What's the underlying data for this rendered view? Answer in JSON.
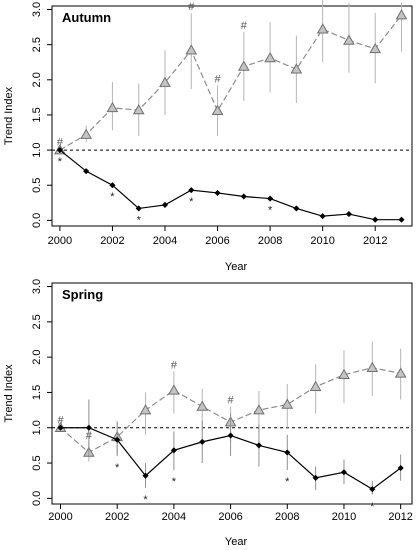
{
  "chart_data": [
    {
      "type": "line",
      "title": "Autumn",
      "xlabel": "Year",
      "ylabel": "Trend Index",
      "xlim": [
        1999.7,
        2013.4
      ],
      "ylim": [
        -0.08,
        3.05
      ],
      "xticks": [
        2000,
        2002,
        2004,
        2006,
        2008,
        2010,
        2012
      ],
      "yticks": [
        0.0,
        0.5,
        1.0,
        1.5,
        2.0,
        2.5,
        3.0
      ],
      "reference_line": 1.0,
      "x": [
        2000,
        2001,
        2002,
        2003,
        2004,
        2005,
        2006,
        2007,
        2008,
        2009,
        2010,
        2011,
        2012,
        2013
      ],
      "series": [
        {
          "marker": "triangle",
          "line_style": "dashed",
          "color": "#8c8c8c",
          "values": [
            1.0,
            1.22,
            1.6,
            1.57,
            1.96,
            2.42,
            1.56,
            2.19,
            2.31,
            2.15,
            2.72,
            2.56,
            2.44,
            2.92
          ],
          "err_low": [
            0.98,
            1.12,
            1.28,
            1.2,
            1.5,
            1.87,
            1.2,
            1.7,
            1.82,
            1.67,
            2.25,
            2.1,
            1.95,
            2.4
          ],
          "err_high": [
            1.02,
            1.35,
            1.97,
            1.95,
            2.42,
            2.95,
            1.92,
            2.68,
            2.82,
            2.63,
            3.15,
            3.1,
            2.95,
            3.1
          ],
          "annotations": [
            {
              "x": 2000,
              "symbol": "#"
            },
            {
              "x": 2005,
              "symbol": "#"
            },
            {
              "x": 2006,
              "symbol": "#"
            },
            {
              "x": 2007,
              "symbol": "#"
            }
          ]
        },
        {
          "marker": "diamond",
          "line_style": "solid",
          "color": "#000000",
          "values": [
            1.0,
            0.7,
            0.5,
            0.17,
            0.22,
            0.43,
            0.39,
            0.34,
            0.31,
            0.17,
            0.06,
            0.09,
            0.01,
            0.01
          ],
          "annotations": [
            {
              "x": 2000,
              "symbol": "*"
            },
            {
              "x": 2002,
              "symbol": "*"
            },
            {
              "x": 2003,
              "symbol": "*"
            },
            {
              "x": 2005,
              "symbol": "*"
            },
            {
              "x": 2008,
              "symbol": "*"
            }
          ]
        }
      ]
    },
    {
      "type": "line",
      "title": "Spring",
      "xlabel": "Year",
      "ylabel": "Trend Index",
      "xlim": [
        1999.7,
        2012.4
      ],
      "ylim": [
        -0.08,
        3.05
      ],
      "xticks": [
        2000,
        2002,
        2004,
        2006,
        2008,
        2010,
        2012
      ],
      "yticks": [
        0.0,
        0.5,
        1.0,
        1.5,
        2.0,
        2.5,
        3.0
      ],
      "reference_line": 1.0,
      "x": [
        2000,
        2001,
        2002,
        2003,
        2004,
        2005,
        2006,
        2007,
        2008,
        2009,
        2010,
        2011,
        2012
      ],
      "series": [
        {
          "marker": "triangle",
          "line_style": "dashed",
          "color": "#8c8c8c",
          "values": [
            1.0,
            0.65,
            0.87,
            1.25,
            1.53,
            1.3,
            1.08,
            1.25,
            1.33,
            1.58,
            1.75,
            1.85,
            1.77
          ],
          "err_low": [
            0.98,
            0.52,
            0.62,
            0.9,
            1.2,
            0.95,
            0.8,
            0.95,
            1.0,
            1.2,
            1.35,
            1.45,
            1.4
          ],
          "err_high": [
            1.02,
            0.8,
            1.1,
            1.5,
            1.8,
            1.55,
            1.3,
            1.52,
            1.62,
            1.9,
            2.1,
            2.22,
            2.12
          ],
          "annotations": [
            {
              "x": 2000,
              "symbol": "#"
            },
            {
              "x": 2001,
              "symbol": "#"
            },
            {
              "x": 2004,
              "symbol": "#"
            },
            {
              "x": 2006,
              "symbol": "#"
            }
          ]
        },
        {
          "marker": "diamond",
          "line_style": "solid",
          "color": "#000000",
          "values": [
            1.0,
            1.0,
            0.83,
            0.32,
            0.68,
            0.8,
            0.89,
            0.75,
            0.65,
            0.29,
            0.37,
            0.13,
            0.43
          ],
          "err_low": [
            0.98,
            0.6,
            0.6,
            0.15,
            0.4,
            0.5,
            0.6,
            0.45,
            0.4,
            0.12,
            0.2,
            0.05,
            0.25
          ],
          "err_high": [
            1.02,
            1.4,
            1.08,
            0.5,
            0.95,
            1.1,
            1.2,
            1.05,
            0.9,
            0.45,
            0.55,
            0.25,
            0.62
          ],
          "annotations": [
            {
              "x": 2002,
              "symbol": "*"
            },
            {
              "x": 2003,
              "symbol": "*"
            },
            {
              "x": 2004,
              "symbol": "*"
            },
            {
              "x": 2008,
              "symbol": "*"
            },
            {
              "x": 2011,
              "symbol": "*"
            }
          ]
        }
      ]
    }
  ]
}
